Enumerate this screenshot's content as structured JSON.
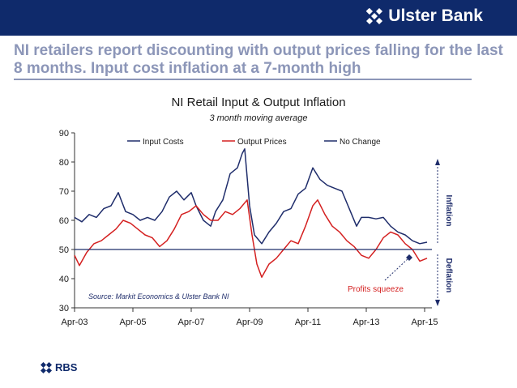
{
  "brand": {
    "name": "Ulster Bank",
    "icon": "ulster-bank-logo-icon"
  },
  "headline": "NI retailers report discounting with output prices falling for the last 8 months. Input cost inflation at a 7-month high",
  "footer": {
    "name": "RBS",
    "icon": "rbs-logo-icon"
  },
  "colors": {
    "topbar": "#0f2a6b",
    "input_costs": "#1f2d6b",
    "output_prices": "#d42020",
    "no_change": "#1f2d6b",
    "headline": "#8c96b8"
  },
  "chart_data": {
    "type": "line",
    "title": "NI Retail Input & Output Inflation",
    "subtitle": "3 month moving average",
    "xlabel": "",
    "ylabel": "",
    "ylim": [
      30,
      90
    ],
    "yticks": [
      30,
      40,
      50,
      60,
      70,
      80,
      90
    ],
    "xlim": [
      "2003-04",
      "2015-07"
    ],
    "xticks": [
      "Apr-03",
      "Apr-05",
      "Apr-07",
      "Apr-09",
      "Apr-11",
      "Apr-13",
      "Apr-15"
    ],
    "grid": false,
    "legend_position": "top",
    "legend": [
      "Input Costs",
      "Output Prices",
      "No Change"
    ],
    "source": "Source: Markit Economics & Ulster Bank NI",
    "annotations": {
      "profits_squeeze": "Profits squeeze",
      "inflation": "Inflation",
      "deflation": "Deflation"
    },
    "series": [
      {
        "name": "Input Costs",
        "points": [
          [
            "2003-04",
            61
          ],
          [
            "2003-07",
            59.5
          ],
          [
            "2003-10",
            62
          ],
          [
            "2004-01",
            61
          ],
          [
            "2004-04",
            64
          ],
          [
            "2004-07",
            65
          ],
          [
            "2004-10",
            69.5
          ],
          [
            "2005-01",
            63
          ],
          [
            "2005-04",
            62
          ],
          [
            "2005-07",
            60
          ],
          [
            "2005-10",
            61
          ],
          [
            "2006-01",
            60
          ],
          [
            "2006-04",
            63
          ],
          [
            "2006-07",
            68
          ],
          [
            "2006-10",
            70
          ],
          [
            "2007-01",
            67
          ],
          [
            "2007-04",
            69.5
          ],
          [
            "2007-06",
            65
          ],
          [
            "2007-09",
            60
          ],
          [
            "2007-12",
            58
          ],
          [
            "2008-02",
            63
          ],
          [
            "2008-05",
            67
          ],
          [
            "2008-08",
            76
          ],
          [
            "2008-11",
            78
          ],
          [
            "2009-01",
            83
          ],
          [
            "2009-02",
            84.5
          ],
          [
            "2009-04",
            65
          ],
          [
            "2009-06",
            55
          ],
          [
            "2009-09",
            52
          ],
          [
            "2009-12",
            56
          ],
          [
            "2010-03",
            59
          ],
          [
            "2010-06",
            63
          ],
          [
            "2010-09",
            64
          ],
          [
            "2010-12",
            69
          ],
          [
            "2011-03",
            71
          ],
          [
            "2011-06",
            78
          ],
          [
            "2011-09",
            74
          ],
          [
            "2011-12",
            72
          ],
          [
            "2012-03",
            71
          ],
          [
            "2012-06",
            70
          ],
          [
            "2012-09",
            64
          ],
          [
            "2012-12",
            58
          ],
          [
            "2013-02",
            61
          ],
          [
            "2013-05",
            61
          ],
          [
            "2013-08",
            60.5
          ],
          [
            "2013-11",
            61
          ],
          [
            "2014-02",
            58
          ],
          [
            "2014-05",
            56
          ],
          [
            "2014-08",
            55
          ],
          [
            "2014-11",
            53
          ],
          [
            "2015-02",
            52
          ],
          [
            "2015-05",
            52.5
          ]
        ]
      },
      {
        "name": "Output Prices",
        "points": [
          [
            "2003-04",
            48
          ],
          [
            "2003-06",
            44.5
          ],
          [
            "2003-09",
            49
          ],
          [
            "2003-12",
            52
          ],
          [
            "2004-03",
            53
          ],
          [
            "2004-06",
            55
          ],
          [
            "2004-09",
            57
          ],
          [
            "2004-12",
            60
          ],
          [
            "2005-03",
            59
          ],
          [
            "2005-06",
            57
          ],
          [
            "2005-09",
            55
          ],
          [
            "2005-12",
            54
          ],
          [
            "2006-03",
            51
          ],
          [
            "2006-06",
            53
          ],
          [
            "2006-09",
            57
          ],
          [
            "2006-12",
            62
          ],
          [
            "2007-03",
            63
          ],
          [
            "2007-06",
            65
          ],
          [
            "2007-09",
            62
          ],
          [
            "2007-12",
            60
          ],
          [
            "2008-03",
            60
          ],
          [
            "2008-06",
            63
          ],
          [
            "2008-09",
            62
          ],
          [
            "2008-12",
            64
          ],
          [
            "2009-03",
            67
          ],
          [
            "2009-05",
            55
          ],
          [
            "2009-07",
            45
          ],
          [
            "2009-09",
            40.5
          ],
          [
            "2009-12",
            45
          ],
          [
            "2010-03",
            47
          ],
          [
            "2010-06",
            50
          ],
          [
            "2010-09",
            53
          ],
          [
            "2010-12",
            52
          ],
          [
            "2011-03",
            58
          ],
          [
            "2011-06",
            65
          ],
          [
            "2011-08",
            67
          ],
          [
            "2011-11",
            62
          ],
          [
            "2012-02",
            58
          ],
          [
            "2012-05",
            56
          ],
          [
            "2012-08",
            53
          ],
          [
            "2012-11",
            51
          ],
          [
            "2013-02",
            48
          ],
          [
            "2013-05",
            47
          ],
          [
            "2013-08",
            50
          ],
          [
            "2013-11",
            54
          ],
          [
            "2014-02",
            56
          ],
          [
            "2014-05",
            55
          ],
          [
            "2014-08",
            52
          ],
          [
            "2014-11",
            50
          ],
          [
            "2015-02",
            46
          ],
          [
            "2015-05",
            47
          ]
        ]
      },
      {
        "name": "No Change",
        "points": [
          [
            "2003-04",
            50
          ],
          [
            "2015-07",
            50
          ]
        ]
      }
    ]
  }
}
